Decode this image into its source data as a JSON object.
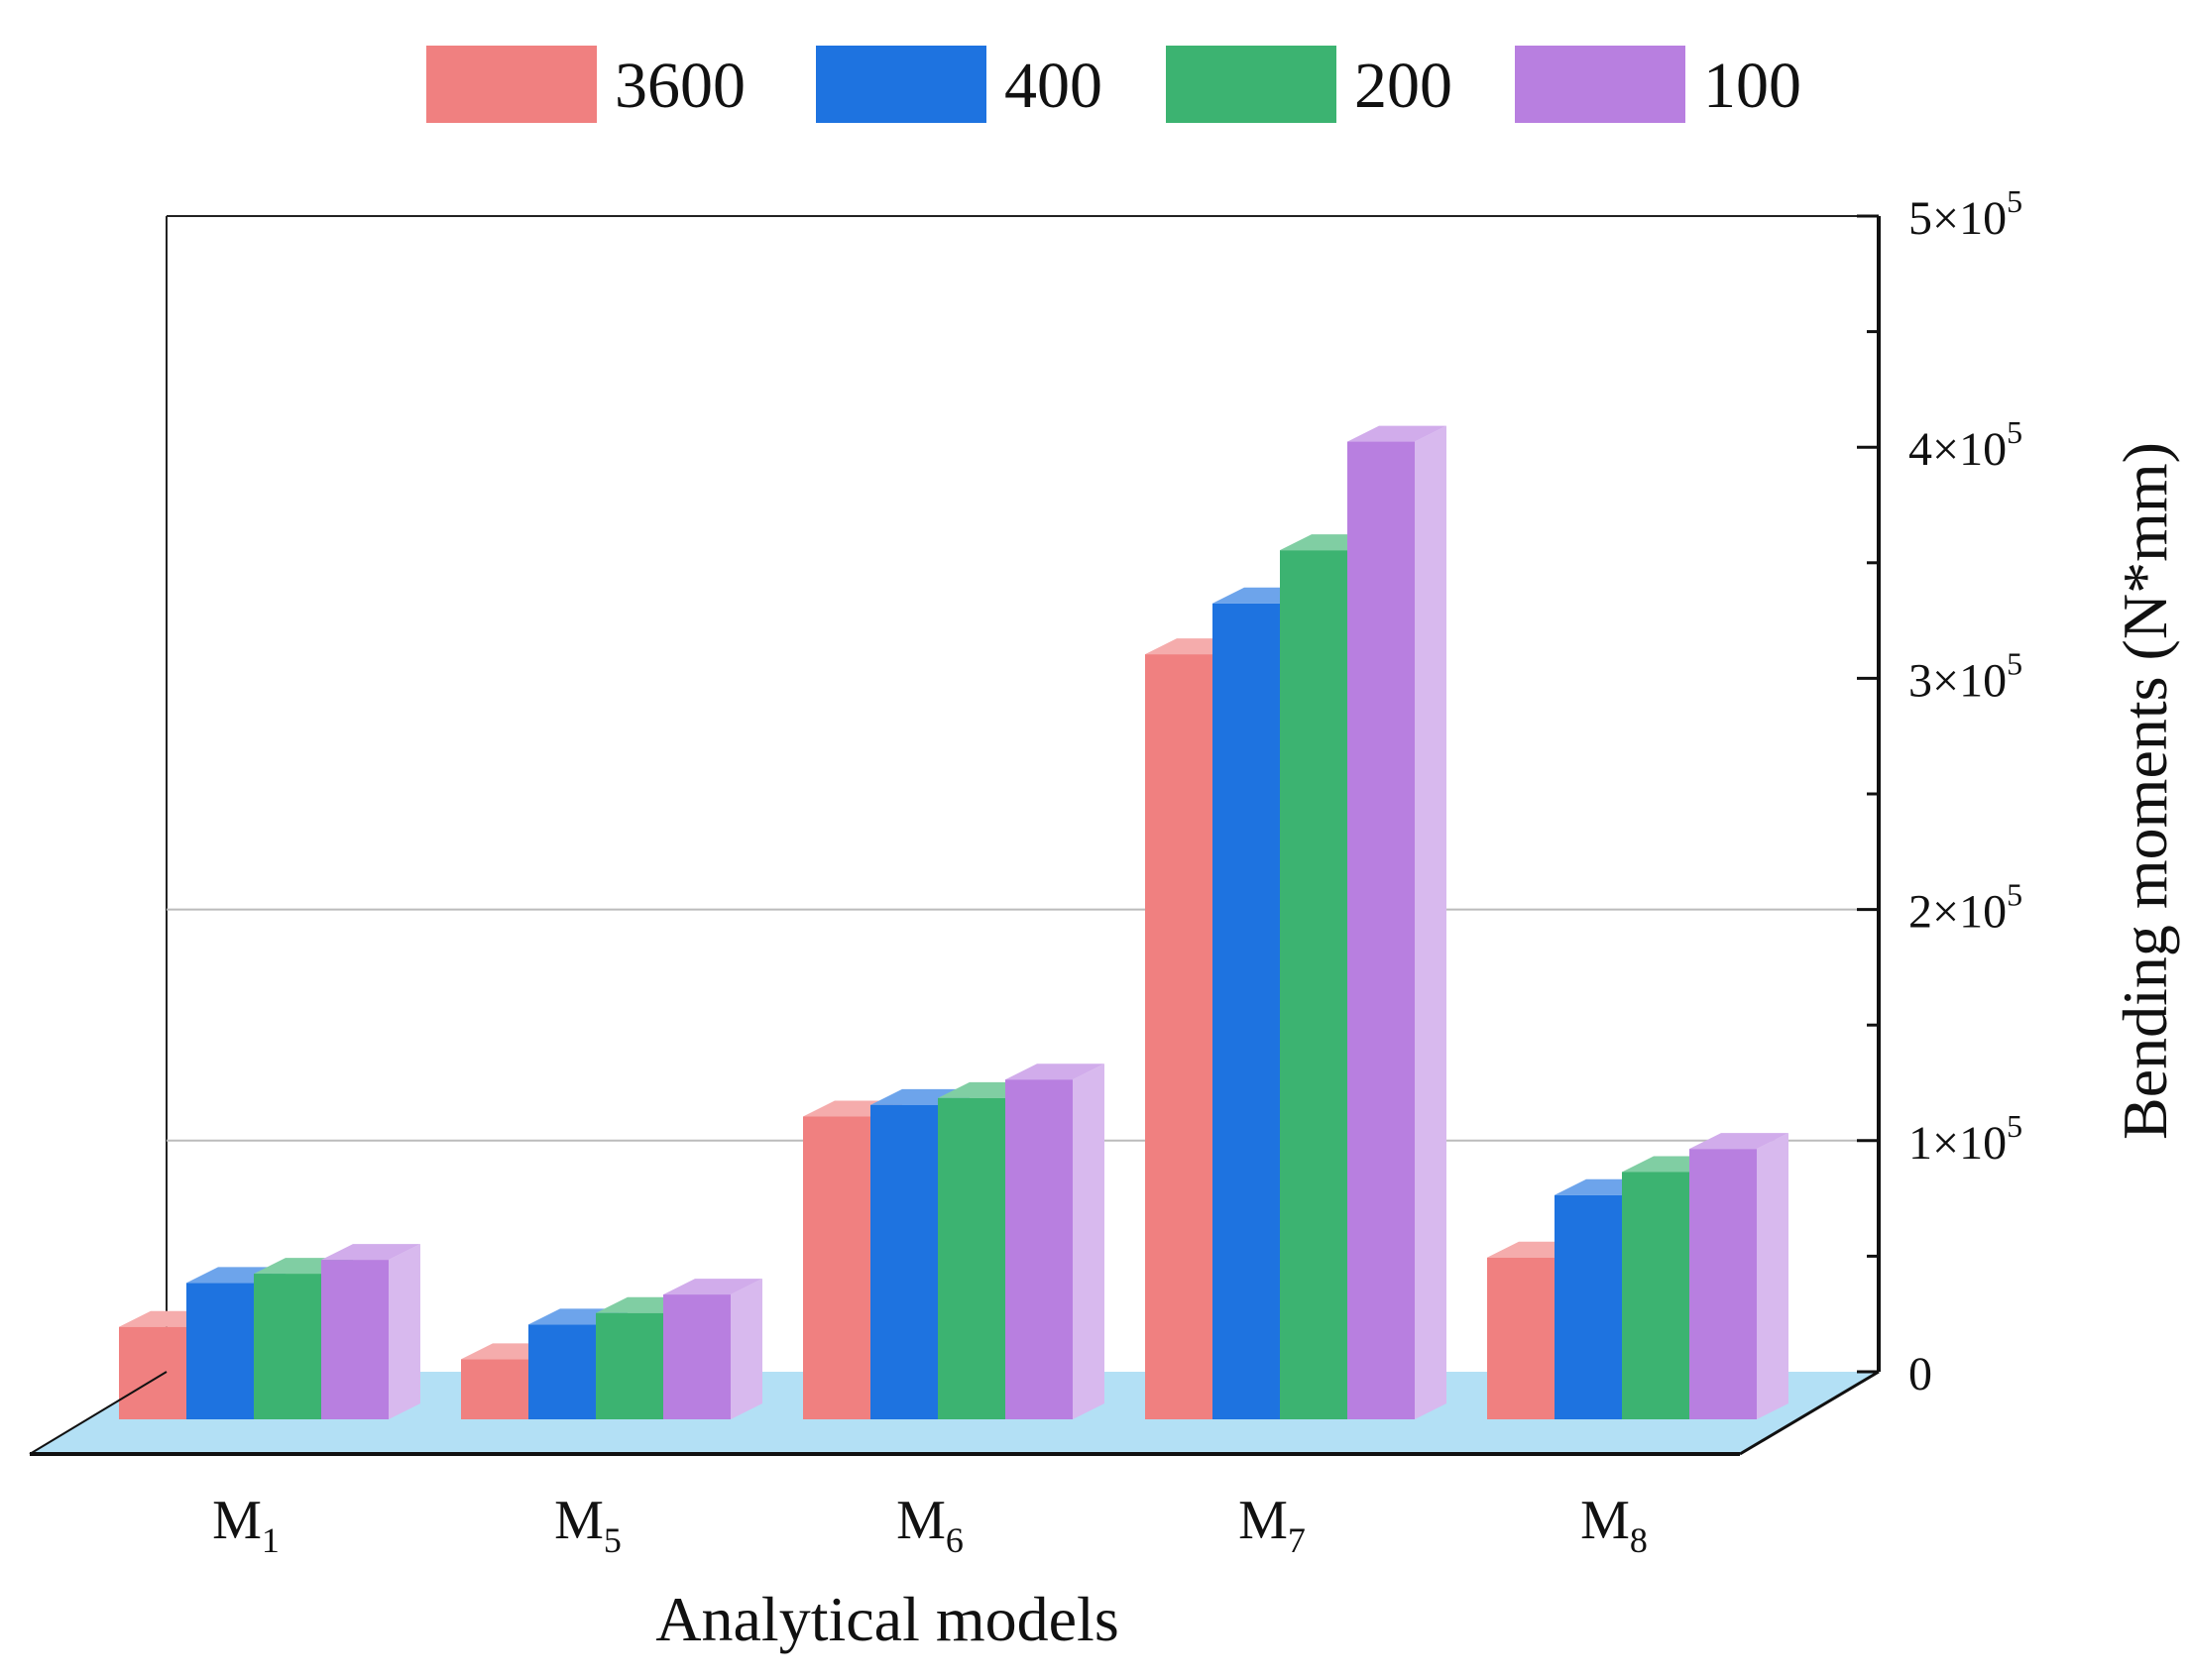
{
  "chart_data": {
    "type": "bar",
    "style": "3d",
    "title": "",
    "xlabel": "Analytical models",
    "ylabel": "Bending moments (N*mm)",
    "categories": [
      {
        "base": "M",
        "sub": "1"
      },
      {
        "base": "M",
        "sub": "5"
      },
      {
        "base": "M",
        "sub": "6"
      },
      {
        "base": "M",
        "sub": "7"
      },
      {
        "base": "M",
        "sub": "8"
      }
    ],
    "series": [
      {
        "name": "3600",
        "color": "#f08080",
        "values": [
          40000,
          26000,
          131000,
          331000,
          70000
        ]
      },
      {
        "name": "400",
        "color": "#1e73e0",
        "values": [
          59000,
          41000,
          136000,
          353000,
          97000
        ]
      },
      {
        "name": "200",
        "color": "#3cb371",
        "values": [
          63000,
          46000,
          139000,
          376000,
          107000
        ]
      },
      {
        "name": "100",
        "color": "#b87fe0",
        "values": [
          69000,
          54000,
          147000,
          423000,
          117000
        ]
      }
    ],
    "ylim": [
      0,
      500000
    ],
    "yticks": [
      {
        "value": 0,
        "base": "0",
        "exp": ""
      },
      {
        "value": 100000,
        "base": "1×10",
        "exp": "5"
      },
      {
        "value": 200000,
        "base": "2×10",
        "exp": "5"
      },
      {
        "value": 300000,
        "base": "3×10",
        "exp": "5"
      },
      {
        "value": 400000,
        "base": "4×10",
        "exp": "5"
      },
      {
        "value": 500000,
        "base": "5×10",
        "exp": "5"
      }
    ],
    "y_minor_step": 50000,
    "gridlines": [
      100000,
      200000
    ],
    "legend_position": "top",
    "floor_color": "#b3e0f5",
    "y_axis_side": "right"
  }
}
